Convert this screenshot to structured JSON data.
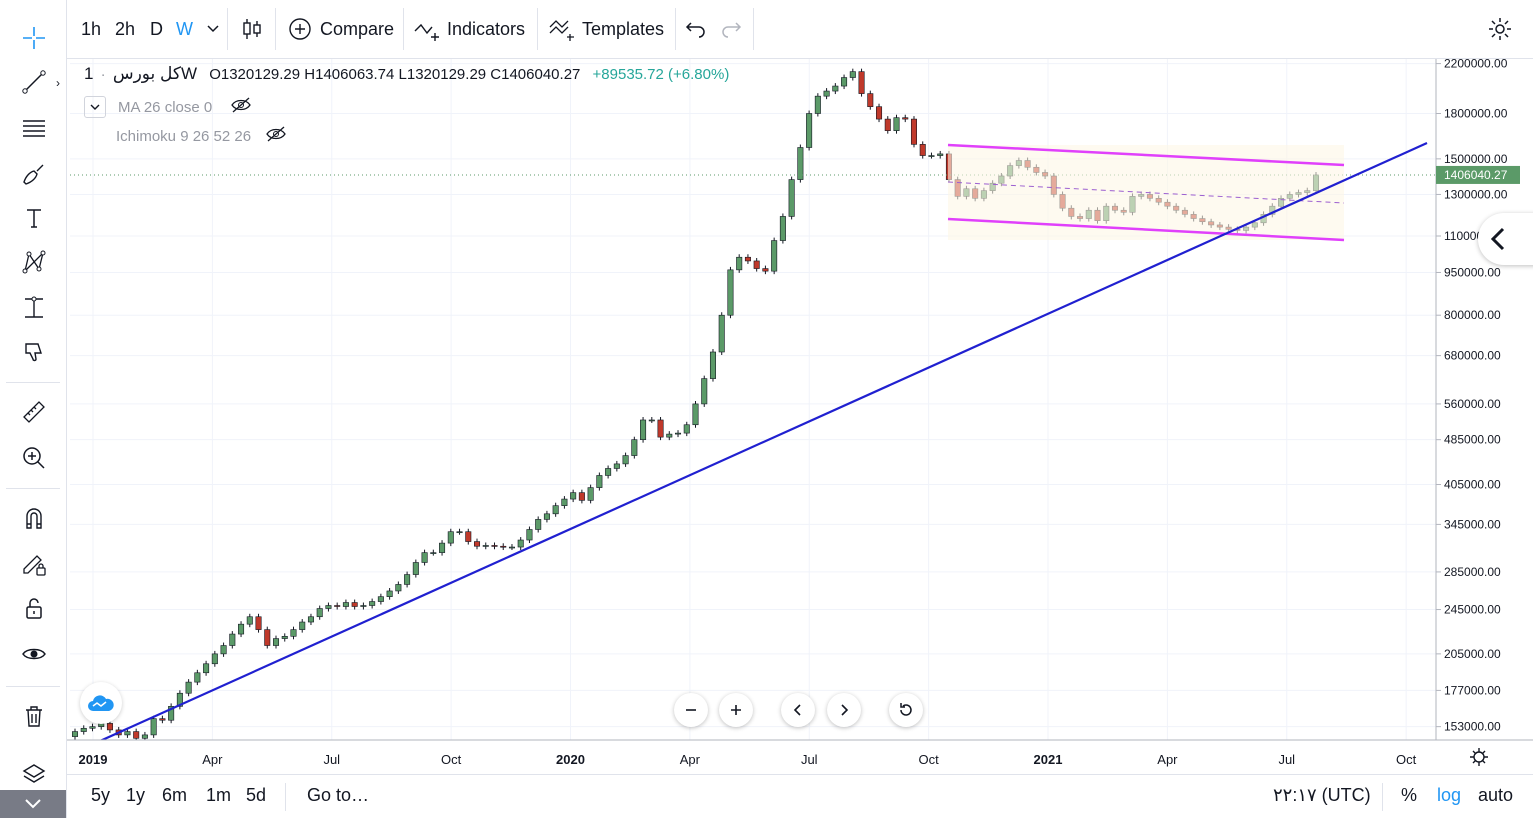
{
  "top_toolbar": {
    "intervals": [
      "1h",
      "2h",
      "D",
      "W"
    ],
    "active_interval": "W",
    "compare_label": "Compare",
    "indicators_label": "Indicators",
    "templates_label": "Templates"
  },
  "legend": {
    "symbol": "کل بورس",
    "interval": "1W",
    "ohlc": "O1320129.29  H1406063.74  L1320129.29  C1406040.27",
    "change": "+89535.72 (+6.80%)"
  },
  "indicators": [
    {
      "label": "MA 26 close 0"
    },
    {
      "label": "Ichimoku 9 26 52 26"
    }
  ],
  "price_axis": {
    "labels": [
      "2200000.00",
      "1800000.00",
      "1500000.00",
      "1300000.00",
      "1100000.00",
      "950000.00",
      "800000.00",
      "680000.00",
      "560000.00",
      "485000.00",
      "405000.00",
      "345000.00",
      "285000.00",
      "245000.00",
      "205000.00",
      "177000.00",
      "153000.00"
    ],
    "last_price_label": "1406040.27",
    "scale": "log"
  },
  "time_axis": {
    "labels": [
      "2019",
      "Apr",
      "Jul",
      "Oct",
      "2020",
      "Apr",
      "Jul",
      "Oct",
      "2021",
      "Apr",
      "Jul",
      "Oct"
    ]
  },
  "bottom_bar": {
    "ranges": [
      "5y",
      "1y",
      "6m",
      "1m",
      "5d"
    ],
    "goto_label": "Go to…",
    "time_zone": "۲۲:۱۷ (UTC)",
    "percent_label": "%",
    "log_label": "log",
    "auto_label": "auto"
  },
  "colors": {
    "up": "#5b9a68",
    "down": "#c0392b",
    "accent": "#2196f3",
    "trendline": "#2020d0",
    "channel": "#e040fb",
    "last_price_bg": "#5b9a68"
  },
  "chart_data": {
    "type": "candlestick",
    "scale": "log",
    "yrange": [
      145000,
      2250000
    ],
    "last_close": 1406040.27,
    "closes": [
      150000,
      152000,
      153000,
      155000,
      151000,
      148000,
      150000,
      146000,
      148000,
      158000,
      157000,
      166000,
      175000,
      183000,
      190000,
      197000,
      205000,
      212000,
      222000,
      231000,
      238000,
      226000,
      212000,
      218000,
      220000,
      226000,
      233000,
      238000,
      246000,
      249000,
      248000,
      252000,
      248000,
      249000,
      253000,
      258000,
      264000,
      271000,
      282000,
      296000,
      308000,
      308000,
      320000,
      335000,
      335000,
      322000,
      316000,
      317000,
      316000,
      315000,
      315000,
      324000,
      338000,
      352000,
      360000,
      372000,
      382000,
      392000,
      380000,
      400000,
      420000,
      432000,
      440000,
      455000,
      485000,
      525000,
      525000,
      490000,
      496000,
      498000,
      515000,
      560000,
      620000,
      690000,
      800000,
      960000,
      1010000,
      995000,
      965000,
      955000,
      1080000,
      1190000,
      1380000,
      1570000,
      1800000,
      1930000,
      1970000,
      2010000,
      2080000,
      2130000,
      1950000,
      1850000,
      1760000,
      1680000,
      1770000,
      1760000,
      1590000,
      1520000,
      1520000,
      1530000,
      1380000,
      1290000,
      1330000,
      1280000,
      1320000,
      1360000,
      1400000,
      1460000,
      1490000,
      1450000,
      1420000,
      1400000,
      1300000,
      1230000,
      1190000,
      1180000,
      1220000,
      1170000,
      1240000,
      1220000,
      1210000,
      1290000,
      1300000,
      1280000,
      1260000,
      1240000,
      1220000,
      1200000,
      1180000,
      1165000,
      1150000,
      1140000,
      1130000,
      1125000,
      1140000,
      1160000,
      1200000,
      1240000,
      1280000,
      1300000,
      1310000,
      1320000,
      1406040
    ]
  }
}
